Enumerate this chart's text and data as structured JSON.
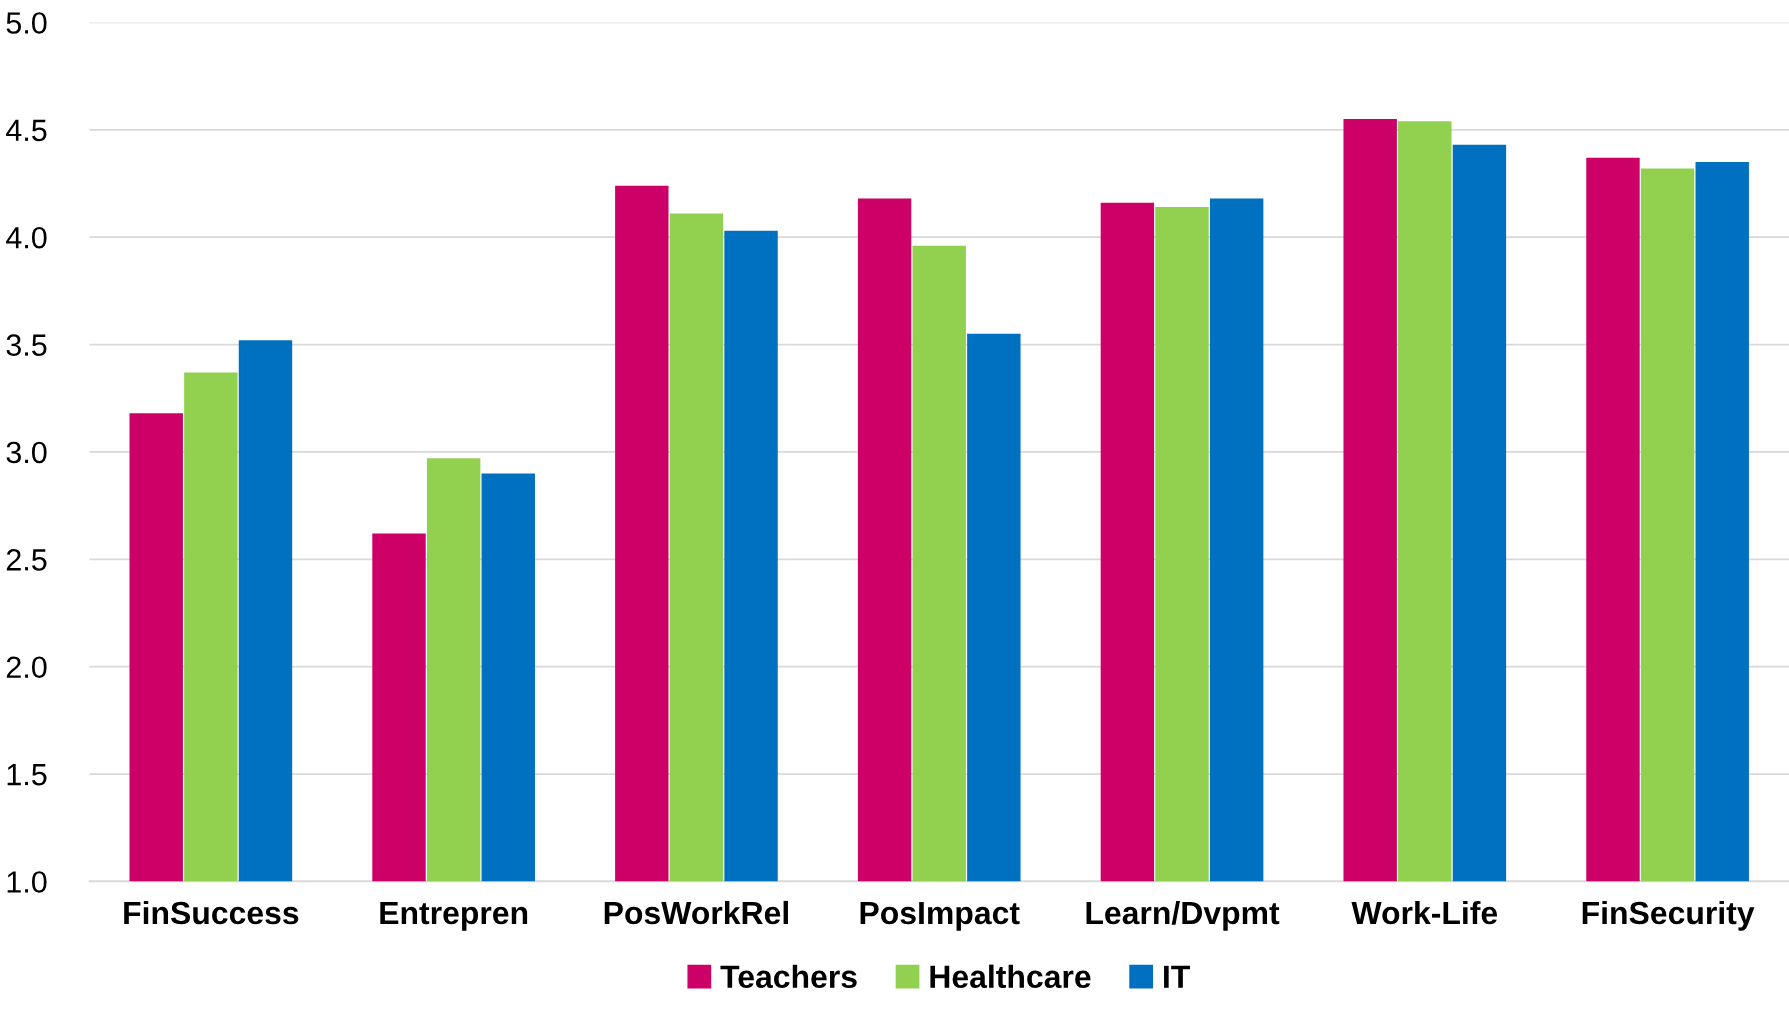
{
  "chart_data": {
    "type": "bar",
    "categories": [
      "FinSuccess",
      "Entrepren",
      "PosWorkRel",
      "PosImpact",
      "Learn/Dvpmt",
      "Work-Life",
      "FinSecurity"
    ],
    "series": [
      {
        "name": "Teachers",
        "color": "#cc0066",
        "values": [
          3.18,
          2.62,
          4.24,
          4.18,
          4.16,
          4.55,
          4.37
        ]
      },
      {
        "name": "Healthcare",
        "color": "#92d050",
        "values": [
          3.37,
          2.97,
          4.11,
          3.96,
          4.14,
          4.54,
          4.32
        ]
      },
      {
        "name": "IT",
        "color": "#0070c0",
        "values": [
          3.52,
          2.9,
          4.03,
          3.55,
          4.18,
          4.43,
          4.35
        ]
      }
    ],
    "ylim": [
      1.0,
      5.0
    ],
    "yticks": [
      {
        "value": 1.0,
        "label": "1.0"
      },
      {
        "value": 1.5,
        "label": "1.5"
      },
      {
        "value": 2.0,
        "label": "2.0"
      },
      {
        "value": 2.5,
        "label": "2.5"
      },
      {
        "value": 3.0,
        "label": "3.0"
      },
      {
        "value": 3.5,
        "label": "3.5"
      },
      {
        "value": 4.0,
        "label": "4.0"
      },
      {
        "value": 4.5,
        "label": "4.5"
      },
      {
        "value": 5.0,
        "label": "5.0"
      }
    ],
    "grid": "y",
    "legend": "bottom"
  }
}
